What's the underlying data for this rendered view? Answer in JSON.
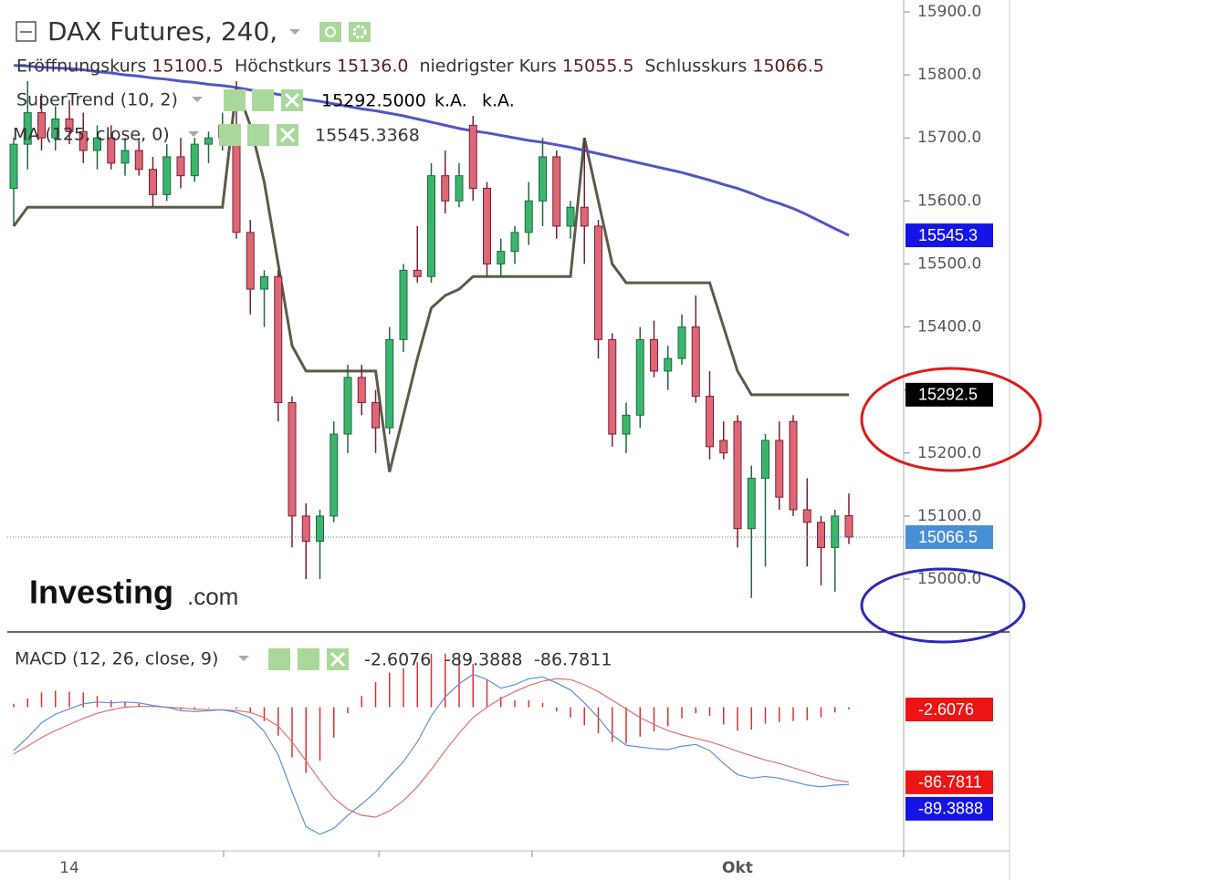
{
  "chart_data": [
    {
      "type": "candlestick",
      "title": "DAX Futures, 240,",
      "legend_labels": [
        "Eröffnungskurs",
        "Höchstkurs",
        "niedrigster Kurs",
        "Schlusskurs"
      ],
      "legend_value_labels": [
        "15100.5",
        "15136.0",
        "15055.5",
        "15066.5"
      ],
      "categories": [
        null,
        null,
        null,
        null,
        "14",
        null,
        null,
        null,
        null,
        null,
        null,
        null,
        null,
        null,
        null,
        null,
        null,
        null,
        null,
        null,
        null,
        null,
        null,
        null,
        null,
        null,
        null,
        null,
        null,
        null,
        null,
        null,
        null,
        null,
        null,
        null,
        null,
        null,
        null,
        null,
        null,
        null,
        null,
        null,
        null,
        null,
        null,
        null,
        null,
        null,
        null,
        null,
        "Okt",
        null,
        null,
        null,
        null,
        null,
        null,
        null,
        null
      ],
      "open": [
        15620,
        15690,
        15740,
        15700,
        15730,
        15710,
        15680,
        15700,
        15660,
        15680,
        15650,
        15610,
        15670,
        15640,
        15690,
        15700,
        15720,
        15550,
        15460,
        15480,
        15280,
        15100,
        15060,
        15100,
        15230,
        15320,
        15280,
        15240,
        15380,
        15490,
        15480,
        15640,
        15600,
        15720,
        15620,
        15500,
        15520,
        15550,
        15600,
        15670,
        15560,
        15590,
        15560,
        15380,
        15230,
        15260,
        15380,
        15330,
        15350,
        15400,
        15290,
        15220,
        15250,
        15080,
        15160,
        15220,
        15250,
        15110,
        15090,
        15050,
        15100.5
      ],
      "high": [
        15700,
        15790,
        15770,
        15750,
        15760,
        15740,
        15720,
        15720,
        15700,
        15700,
        15670,
        15690,
        15700,
        15700,
        15710,
        15740,
        15790,
        15570,
        15490,
        15490,
        15290,
        15120,
        15110,
        15250,
        15340,
        15340,
        15300,
        15400,
        15500,
        15560,
        15660,
        15680,
        15660,
        15735,
        15630,
        15540,
        15560,
        15630,
        15700,
        15680,
        15600,
        15700,
        15570,
        15390,
        15280,
        15400,
        15410,
        15370,
        15420,
        15450,
        15330,
        15250,
        15260,
        15180,
        15230,
        15250,
        15260,
        15160,
        15100,
        15110,
        15136
      ],
      "low": [
        15560,
        15650,
        15680,
        15680,
        15690,
        15660,
        15650,
        15650,
        15640,
        15640,
        15590,
        15600,
        15620,
        15630,
        15660,
        15680,
        15540,
        15420,
        15400,
        15250,
        15050,
        15000,
        15000,
        15090,
        15200,
        15260,
        15200,
        15230,
        15360,
        15470,
        15470,
        15580,
        15590,
        15600,
        15480,
        15480,
        15500,
        15530,
        15560,
        15540,
        15540,
        15500,
        15350,
        15210,
        15200,
        15240,
        15320,
        15300,
        15340,
        15280,
        15190,
        15190,
        15050,
        14970,
        15020,
        15110,
        15100,
        15020,
        14990,
        14980,
        15055.5
      ],
      "close": [
        15690,
        15740,
        15700,
        15730,
        15710,
        15680,
        15700,
        15660,
        15680,
        15650,
        15610,
        15670,
        15640,
        15690,
        15700,
        15720,
        15550,
        15460,
        15480,
        15280,
        15100,
        15060,
        15100,
        15230,
        15320,
        15280,
        15240,
        15380,
        15490,
        15480,
        15640,
        15600,
        15640,
        15620,
        15500,
        15520,
        15550,
        15600,
        15670,
        15560,
        15590,
        15560,
        15380,
        15230,
        15260,
        15380,
        15330,
        15350,
        15400,
        15290,
        15210,
        15200,
        15080,
        15160,
        15220,
        15130,
        15110,
        15090,
        15050,
        15100,
        15066.5
      ],
      "up_color": "#3cb46e",
      "down_color": "#dd6677",
      "ylim": [
        14917.5,
        15918.8
      ],
      "yticks": [
        {
          "value": 15000,
          "label": "15000.0"
        },
        {
          "value": 15100,
          "label": "15100.0"
        },
        {
          "value": 15200,
          "label": "15200.0"
        },
        {
          "value": 15300,
          "label": "15300.0"
        },
        {
          "value": 15400,
          "label": "15400.0"
        },
        {
          "value": 15500,
          "label": "15500.0"
        },
        {
          "value": 15600,
          "label": "15600.0"
        },
        {
          "value": 15700,
          "label": "15700.0"
        },
        {
          "value": 15800,
          "label": "15800.0"
        },
        {
          "value": 15900,
          "label": "15900.0"
        }
      ],
      "close_tag_color": "#4a8fd6",
      "overlays": [
        {
          "name": "SuperTrend (10, 2)",
          "color": "#5b5b48",
          "legend_value_label": "15292.5000",
          "legend_extra": [
            "k.A.",
            "k.A."
          ],
          "tag_color": "#000000",
          "legend_color": "#000000",
          "values": [
            15560,
            15590,
            15590,
            15590,
            15590,
            15590,
            15590,
            15590,
            15590,
            15590,
            15590,
            15590,
            15590,
            15590,
            15590,
            15590,
            15780,
            15720,
            15630,
            15500,
            15370,
            15330,
            15330,
            15330,
            15330,
            15330,
            15330,
            15170,
            15260,
            15350,
            15430,
            15450,
            15460,
            15480,
            15480,
            15480,
            15480,
            15480,
            15480,
            15480,
            15480,
            15700,
            15600,
            15500,
            15470,
            15470,
            15470,
            15470,
            15470,
            15470,
            15470,
            15400,
            15330,
            15292.5,
            15292.5,
            15292.5,
            15292.5,
            15292.5,
            15292.5,
            15292.5,
            15292.5
          ]
        },
        {
          "name": "MA (125, close, 0)",
          "color": "#5157c4",
          "tag_label": "15545.3",
          "tag_color": "#1414e6",
          "legend_color": "#1414c8",
          "values": [
            15815,
            15814,
            15812,
            15811,
            15810,
            15808,
            15805,
            15803,
            15800,
            15798,
            15795,
            15793,
            15790,
            15788,
            15785,
            15783,
            15780,
            15776,
            15773,
            15769,
            15765,
            15761,
            15758,
            15754,
            15750,
            15746,
            15743,
            15739,
            15735,
            15730,
            15725,
            15720,
            15715,
            15711,
            15708,
            15704,
            15700,
            15696,
            15693,
            15689,
            15685,
            15680,
            15675,
            15670,
            15665,
            15660,
            15655,
            15650,
            15645,
            15639,
            15633,
            15626,
            15620,
            15612,
            15603,
            15596,
            15588,
            15578,
            15567,
            15556,
            15545.3368
          ]
        }
      ],
      "logo": [
        "Investing",
        ".com"
      ]
    },
    {
      "type": "macd",
      "title": "MACD (12, 26, close, 9)",
      "ylim": [
        -166,
        87
      ],
      "series": [
        {
          "color": "#e03030",
          "values": [
            4,
            10,
            17,
            19,
            18,
            17,
            13,
            8,
            6,
            4,
            1,
            0,
            -3,
            -3,
            -1,
            0,
            -2,
            -6,
            -16,
            -33,
            -58,
            -76,
            -62,
            -35,
            -7,
            13,
            29,
            40,
            45,
            52,
            62,
            62,
            57,
            50,
            32,
            12,
            8,
            8,
            5,
            -5,
            -12,
            -21,
            -30,
            -40,
            -42,
            -34,
            -28,
            -22,
            -13,
            -7,
            -10,
            -20,
            -27,
            -26,
            -19,
            -17,
            -16,
            -15,
            -12,
            -6,
            -2.6076
          ]
        },
        {
          "color": "#5b8fd8",
          "legend_color": "#1414c8",
          "tag_color": "#1414e6",
          "values": [
            -50,
            -35,
            -18,
            -8,
            -2,
            4,
            6,
            5,
            6,
            5,
            2,
            0,
            -4,
            -5,
            -4,
            -3,
            -6,
            -12,
            -28,
            -55,
            -98,
            -138,
            -147,
            -140,
            -125,
            -112,
            -98,
            -80,
            -63,
            -40,
            -10,
            12,
            27,
            38,
            32,
            22,
            26,
            33,
            35,
            28,
            20,
            5,
            -12,
            -32,
            -44,
            -46,
            -48,
            -49,
            -45,
            -43,
            -50,
            -65,
            -78,
            -82,
            -80,
            -82,
            -86,
            -90,
            -92,
            -90,
            -89.3888
          ]
        },
        {
          "color": "#e07070",
          "legend_color": "#e01010",
          "tag_color": "#ec1414",
          "values": [
            -54,
            -45,
            -35,
            -27,
            -20,
            -13,
            -7,
            -3,
            0,
            1,
            1,
            0,
            -1,
            -2,
            -3,
            -3,
            -4,
            -6,
            -12,
            -22,
            -40,
            -62,
            -85,
            -105,
            -118,
            -125,
            -127,
            -120,
            -108,
            -92,
            -72,
            -50,
            -30,
            -12,
            0,
            10,
            18,
            25,
            30,
            33,
            32,
            26,
            18,
            8,
            -2,
            -12,
            -20,
            -27,
            -32,
            -36,
            -40,
            -45,
            -51,
            -56,
            -61,
            -65,
            -70,
            -75,
            -80,
            -84,
            -86.7811
          ]
        }
      ]
    }
  ]
}
